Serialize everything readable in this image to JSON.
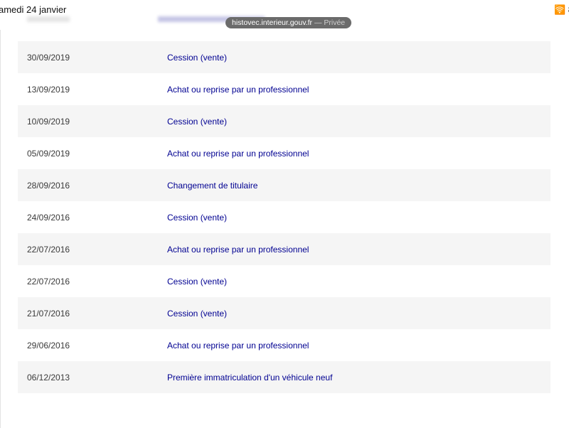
{
  "status_bar": {
    "time": "amedi 24 janvier",
    "battery": "8"
  },
  "url_bar": {
    "domain": "histovec.interieur.gouv.fr",
    "mode": " — Privée"
  },
  "colors": {
    "link": "#000091",
    "row_shade": "#f5f5f5"
  },
  "history": [
    {
      "date": "30/09/2019",
      "event": "Cession (vente)"
    },
    {
      "date": "13/09/2019",
      "event": "Achat ou reprise par un professionnel"
    },
    {
      "date": "10/09/2019",
      "event": "Cession (vente)"
    },
    {
      "date": "05/09/2019",
      "event": "Achat ou reprise par un professionnel"
    },
    {
      "date": "28/09/2016",
      "event": "Changement de titulaire"
    },
    {
      "date": "24/09/2016",
      "event": "Cession (vente)"
    },
    {
      "date": "22/07/2016",
      "event": "Achat ou reprise par un professionnel"
    },
    {
      "date": "22/07/2016",
      "event": "Cession (vente)"
    },
    {
      "date": "21/07/2016",
      "event": "Cession (vente)"
    },
    {
      "date": "29/06/2016",
      "event": "Achat ou reprise par un professionnel"
    },
    {
      "date": "06/12/2013",
      "event": "Première immatriculation d'un véhicule neuf"
    }
  ]
}
